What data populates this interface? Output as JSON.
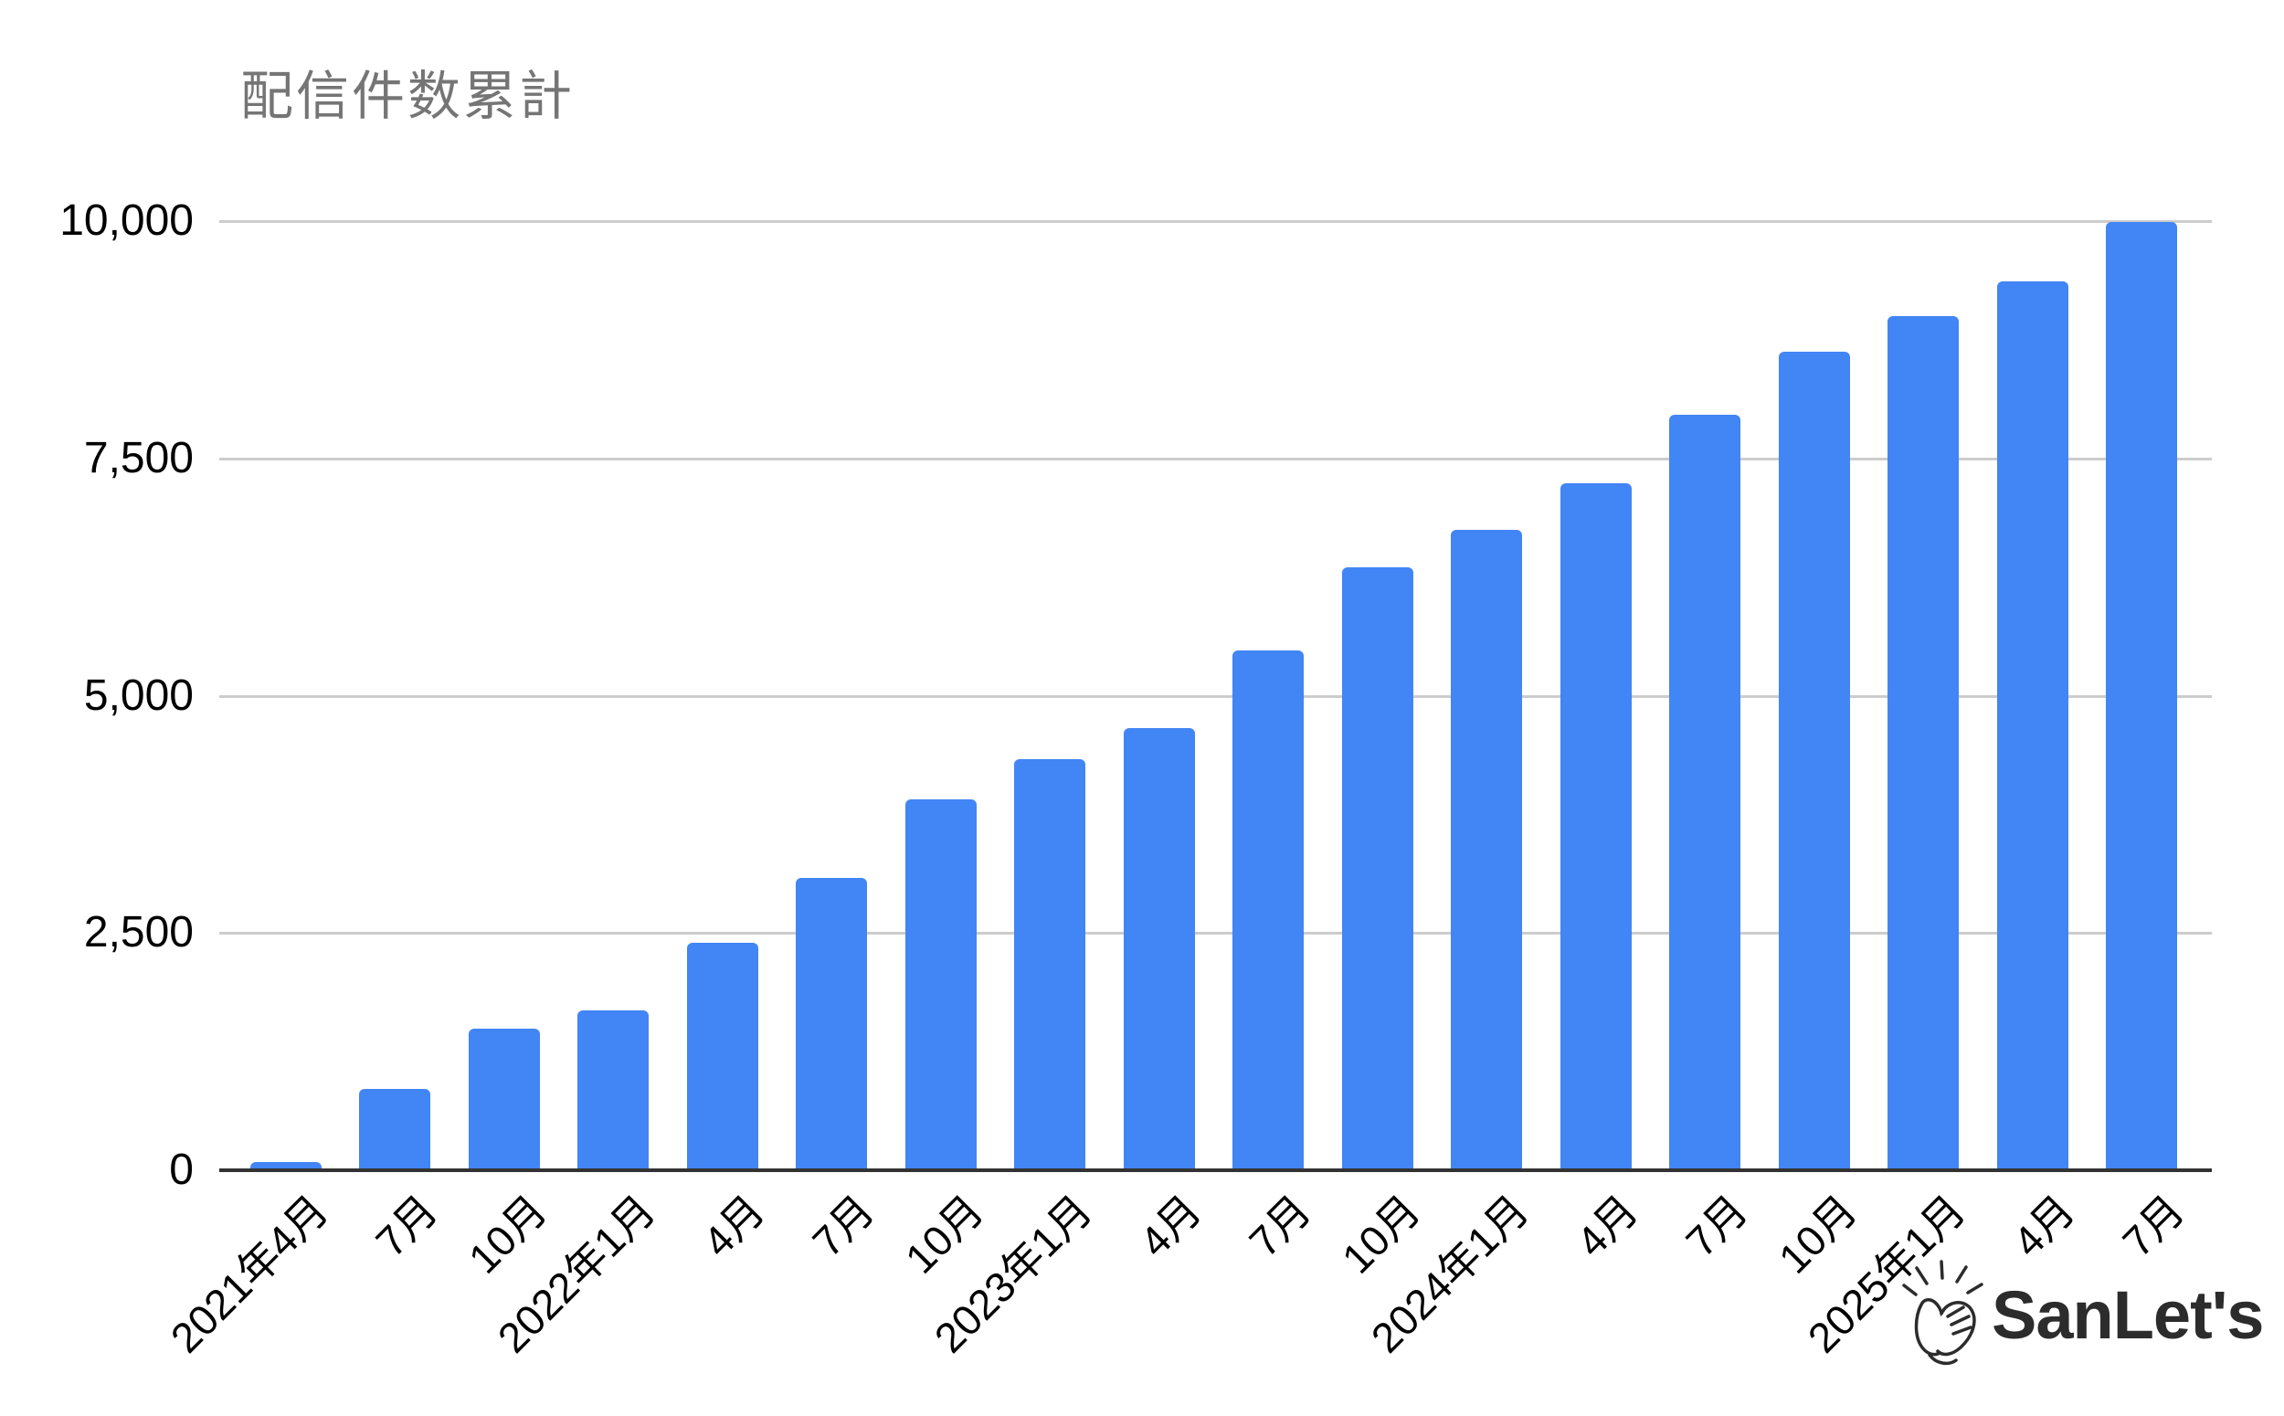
{
  "title": "配信件数累計",
  "chart_data": {
    "type": "bar",
    "title": "配信件数累計",
    "categories": [
      "2021年4月",
      "7月",
      "10月",
      "2022年1月",
      "4月",
      "7月",
      "10月",
      "2023年1月",
      "4月",
      "7月",
      "10月",
      "2024年1月",
      "4月",
      "7月",
      "10月",
      "2025年1月",
      "4月",
      "7月"
    ],
    "values": [
      90,
      860,
      1490,
      1680,
      2400,
      3080,
      3910,
      4330,
      4660,
      5480,
      6350,
      6750,
      7240,
      7960,
      8620,
      9000,
      9360,
      9990
    ],
    "xlabel": "",
    "ylabel": "",
    "ylim": [
      0,
      10000
    ],
    "ytick_values": [
      0,
      2500,
      5000,
      7500,
      10000
    ],
    "ytick_labels": [
      "0",
      "2,500",
      "5,000",
      "7,500",
      "10,000"
    ],
    "grid": "on",
    "legend": "none",
    "bar_color": "#4285F4",
    "gridline_color": "#cccccc",
    "axis_color": "#333333",
    "title_color": "#757575",
    "label_color": "#000000"
  },
  "logo": {
    "icon": "clapping-hands-icon",
    "text": "SanLet's",
    "color": "#2c2c2c"
  }
}
